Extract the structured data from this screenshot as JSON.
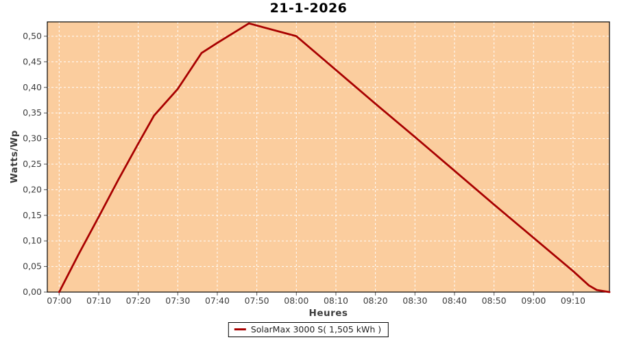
{
  "chart_data": {
    "type": "line",
    "title": "21-1-2026",
    "xlabel": "Heures",
    "ylabel": "Watts/Wp",
    "legend": [
      "SolarMax 3000 S( 1,505 kWh )"
    ],
    "legend_position": "bottom-center",
    "grid": true,
    "xlim_minutes": [
      417,
      559.2
    ],
    "ylim": [
      0,
      0.528
    ],
    "x_ticks": [
      {
        "minutes": 420,
        "label": "07:00"
      },
      {
        "minutes": 430,
        "label": "07:10"
      },
      {
        "minutes": 440,
        "label": "07:20"
      },
      {
        "minutes": 450,
        "label": "07:30"
      },
      {
        "minutes": 460,
        "label": "07:40"
      },
      {
        "minutes": 470,
        "label": "07:50"
      },
      {
        "minutes": 480,
        "label": "08:00"
      },
      {
        "minutes": 490,
        "label": "08:10"
      },
      {
        "minutes": 500,
        "label": "08:20"
      },
      {
        "minutes": 510,
        "label": "08:30"
      },
      {
        "minutes": 520,
        "label": "08:40"
      },
      {
        "minutes": 530,
        "label": "08:50"
      },
      {
        "minutes": 540,
        "label": "09:00"
      },
      {
        "minutes": 550,
        "label": "09:10"
      }
    ],
    "y_ticks": [
      {
        "value": 0.0,
        "label": "0,00"
      },
      {
        "value": 0.05,
        "label": "0,05"
      },
      {
        "value": 0.1,
        "label": "0,10"
      },
      {
        "value": 0.15,
        "label": "0,15"
      },
      {
        "value": 0.2,
        "label": "0,20"
      },
      {
        "value": 0.25,
        "label": "0,25"
      },
      {
        "value": 0.3,
        "label": "0,30"
      },
      {
        "value": 0.35,
        "label": "0,35"
      },
      {
        "value": 0.4,
        "label": "0,40"
      },
      {
        "value": 0.45,
        "label": "0,45"
      },
      {
        "value": 0.5,
        "label": "0,50"
      }
    ],
    "series": [
      {
        "name": "SolarMax 3000 S( 1,505 kWh )",
        "color": "#a80000",
        "points": [
          [
            420,
            0.0
          ],
          [
            425,
            0.075
          ],
          [
            430,
            0.147
          ],
          [
            435,
            0.22
          ],
          [
            440,
            0.29
          ],
          [
            444,
            0.345
          ],
          [
            450,
            0.397
          ],
          [
            456,
            0.467
          ],
          [
            460,
            0.487
          ],
          [
            468,
            0.525
          ],
          [
            480,
            0.5
          ],
          [
            490,
            0.434
          ],
          [
            500,
            0.368
          ],
          [
            510,
            0.303
          ],
          [
            520,
            0.237
          ],
          [
            530,
            0.171
          ],
          [
            540,
            0.106
          ],
          [
            550,
            0.041
          ],
          [
            554,
            0.013
          ],
          [
            556,
            0.004
          ],
          [
            559.2,
            0.0
          ]
        ]
      }
    ],
    "colors": {
      "plot_background": "#fbcd9e",
      "gridline": "#ffffff",
      "plot_border": "#000000",
      "tick_mark": "#555555",
      "tick_text": "#3c3c3c",
      "series_line": "#a80000",
      "title_text": "#000000"
    }
  }
}
